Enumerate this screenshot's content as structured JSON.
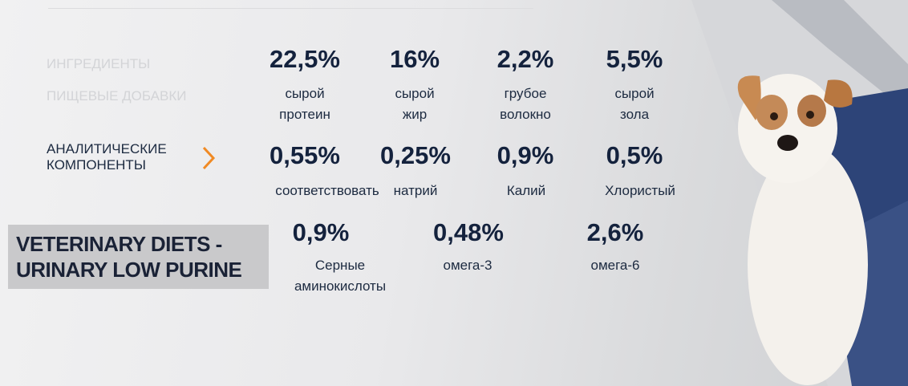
{
  "tabs": {
    "items": [
      "ИНГРЕДИЕНТЫ",
      "ПИЩЕВЫЕ ДОБАВКИ",
      "АНАЛИТИЧЕСКИЕ КОМПОНЕНТЫ"
    ],
    "active": 2
  },
  "product": {
    "name": "VETERINARY DIETS - URINARY LOW PURINE"
  },
  "components": {
    "rows": [
      [
        {
          "value": "22,5%",
          "label": "сырой\nпротеин"
        },
        {
          "value": "16%",
          "label": "сырой\nжир"
        },
        {
          "value": "2,2%",
          "label": "грубое\nволокно"
        },
        {
          "value": "5,5%",
          "label": "сырой\nзола"
        }
      ],
      [
        {
          "value": "0,55%",
          "label": "соответствовать"
        },
        {
          "value": "0,25%",
          "label": "натрий"
        },
        {
          "value": "0,9%",
          "label": "Калий"
        },
        {
          "value": "0,5%",
          "label": "Хлористый"
        }
      ],
      [
        {
          "value": "0,9%",
          "label": "Серные\nаминокислоты"
        },
        {
          "value": "0,48%",
          "label": "омега-3"
        },
        {
          "value": "2,6%",
          "label": "омега-6"
        }
      ]
    ]
  }
}
